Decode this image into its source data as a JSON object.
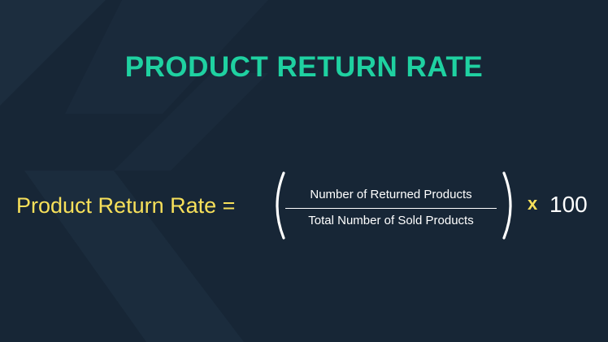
{
  "title": "PRODUCT RETURN RATE",
  "formula": {
    "lhs": "Product Return Rate =",
    "numerator": "Number of Returned Products",
    "denominator": "Total Number of Sold Products",
    "operator": "x",
    "multiplier": "100"
  },
  "colors": {
    "background": "#172636",
    "background_shape": "#1c2d3e",
    "title": "#1fd1a1",
    "lhs": "#f7e05a",
    "text": "#ffffff",
    "operator": "#f7e05a"
  }
}
